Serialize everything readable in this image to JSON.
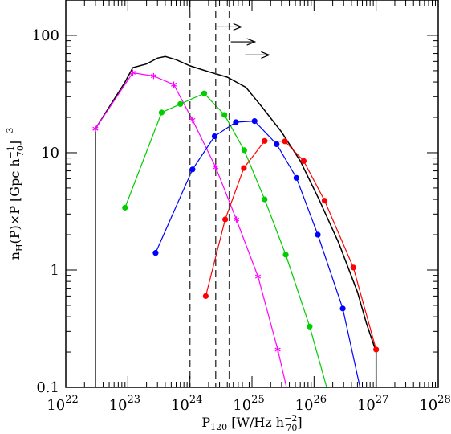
{
  "chart_data": {
    "type": "line",
    "xscale": "log",
    "yscale": "log",
    "xlim": [
      1e+22,
      1e+28
    ],
    "ylim": [
      0.1,
      200
    ],
    "xlabel": {
      "main": "P",
      "sub": "120",
      "pre": "[W/Hz h",
      "sub2": "70",
      "sup2": "−2",
      "post": "]"
    },
    "ylabel": {
      "main": "n",
      "sub": "H",
      "mid": "(P)×P [Gpc h",
      "sub2": "70",
      "sup2": "−1",
      "post": "]",
      "sup3": "−3"
    },
    "x_ticks": [
      {
        "value": 1e+22,
        "base": "10",
        "exp": "22"
      },
      {
        "value": 1e+23,
        "base": "10",
        "exp": "23"
      },
      {
        "value": 1e+24,
        "base": "10",
        "exp": "24"
      },
      {
        "value": 1e+25,
        "base": "10",
        "exp": "25"
      },
      {
        "value": 1e+26,
        "base": "10",
        "exp": "26"
      },
      {
        "value": 1e+27,
        "base": "10",
        "exp": "27"
      },
      {
        "value": 1e+28,
        "base": "10",
        "exp": "28"
      }
    ],
    "y_ticks": [
      {
        "value": 0.1,
        "label": "0.1"
      },
      {
        "value": 1,
        "label": "1"
      },
      {
        "value": 10,
        "label": "10"
      },
      {
        "value": 100,
        "label": "100"
      }
    ],
    "vlines": [
      1e+24,
      2.6e+24,
      4.3e+24
    ],
    "arrows": [
      {
        "x": 2.6e+24,
        "y": 118
      },
      {
        "x": 4.3e+24,
        "y": 88
      },
      {
        "x": 7.3e+24,
        "y": 68
      }
    ],
    "series": [
      {
        "color": "#000000",
        "marker": "none",
        "x": [
          3e+22,
          3e+22,
          9e+22,
          1.2e+23,
          2e+23,
          3e+23,
          4e+23,
          6e+23,
          1e+24,
          2e+24,
          4e+24,
          8e+24,
          1.5e+25,
          3e+25,
          6e+25,
          1.2e+26,
          2.5e+26,
          5e+26,
          7e+26,
          1e+27,
          1e+27
        ],
        "y": [
          0.1,
          16,
          40,
          53,
          57,
          64,
          66,
          62,
          55,
          49,
          44,
          36,
          24,
          15,
          8.5,
          4,
          1.7,
          0.65,
          0.35,
          0.2,
          0.1
        ]
      },
      {
        "color": "#ff00ff",
        "marker": "star",
        "x": [
          3e+22,
          1.2e+23,
          2.6e+23,
          5.5e+23,
          1.1e+24,
          2.6e+24,
          5.6e+24,
          1.25e+25,
          2.6e+25,
          3.6e+25
        ],
        "y": [
          16,
          48,
          45,
          38,
          19,
          7.5,
          2.7,
          0.88,
          0.21,
          0.1
        ]
      },
      {
        "color": "#00cc00",
        "marker": "dot",
        "x": [
          9e+22,
          3.5e+23,
          7e+23,
          1.7e+24,
          3.6e+24,
          7.5e+24,
          1.6e+25,
          3.5e+25,
          8.5e+25,
          1.6e+26
        ],
        "y": [
          3.4,
          22,
          26,
          32,
          21,
          10.5,
          4,
          1.35,
          0.33,
          0.1
        ]
      },
      {
        "color": "#0000ff",
        "marker": "dot",
        "x": [
          2.8e+23,
          1.1e+24,
          2.5e+24,
          5.5e+24,
          1.1e+25,
          2.5e+25,
          5.2e+25,
          1.15e+26,
          2.9e+26,
          5.5e+26
        ],
        "y": [
          1.4,
          7.2,
          13.8,
          18.2,
          18.6,
          11.8,
          6.1,
          2,
          0.47,
          0.1
        ]
      },
      {
        "color": "#ff0000",
        "marker": "dot",
        "x": [
          1.8e+24,
          3.7e+24,
          7.4e+24,
          1.6e+25,
          3.4e+25,
          6.8e+25,
          1.48e+26,
          4.3e+26,
          1e+27
        ],
        "y": [
          0.6,
          2.7,
          7.4,
          12.6,
          12.5,
          8.5,
          3.9,
          1.05,
          0.21
        ]
      }
    ]
  }
}
